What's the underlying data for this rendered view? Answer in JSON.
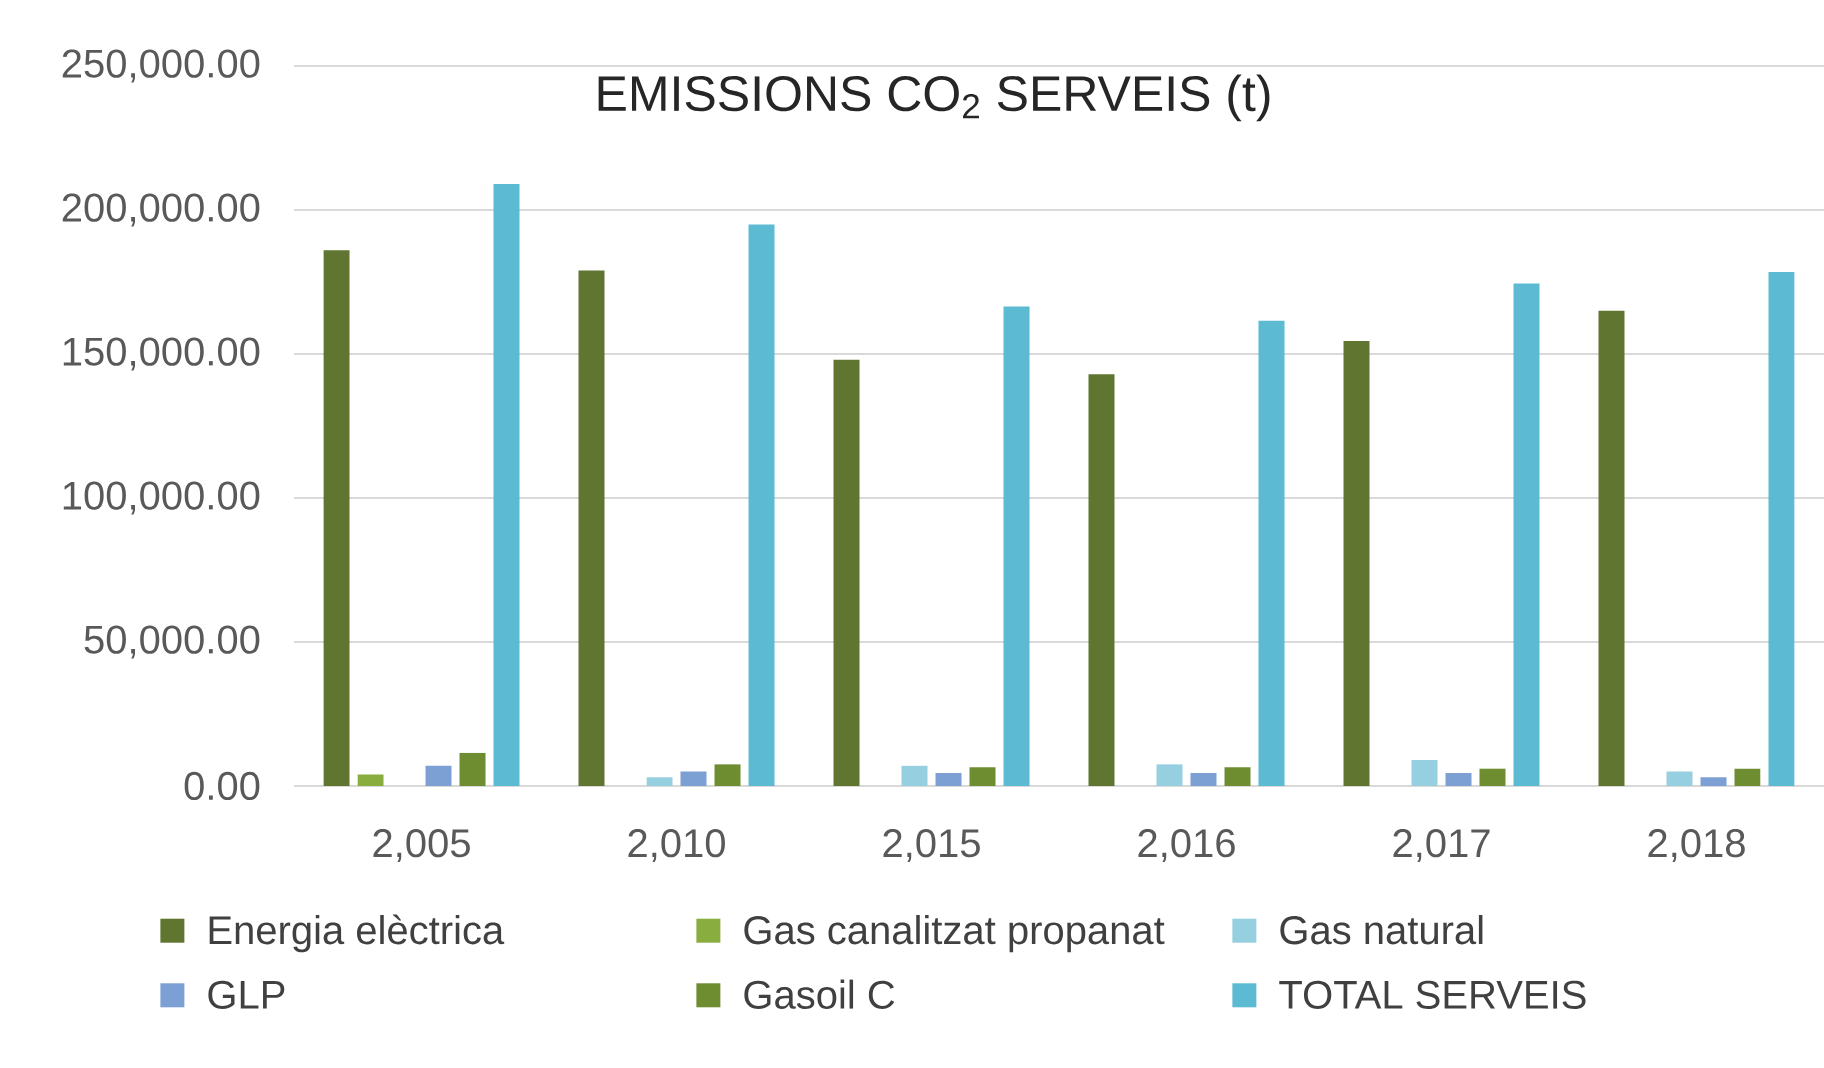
{
  "chart_data": {
    "type": "bar",
    "title": "EMISSIONS CO$_{2}$ SERVEIS (t)",
    "categories": [
      "2,005",
      "2,010",
      "2,015",
      "2,016",
      "2,017",
      "2,018"
    ],
    "series": [
      {
        "name": "Energia elèctrica",
        "color": "#5f7530",
        "values": [
          186000,
          179000,
          148000,
          143000,
          154500,
          165000
        ]
      },
      {
        "name": "Gas canalitzat propanat",
        "color": "#8aad3f",
        "values": [
          4000,
          null,
          null,
          null,
          null,
          null
        ]
      },
      {
        "name": "Gas natural",
        "color": "#95cfe0",
        "values": [
          null,
          3000,
          7000,
          7500,
          9000,
          5000
        ]
      },
      {
        "name": "GLP",
        "color": "#7c9fd4",
        "values": [
          7000,
          5000,
          4500,
          4500,
          4500,
          3000
        ]
      },
      {
        "name": "Gasoil C",
        "color": "#6e8c30",
        "values": [
          11500,
          7500,
          6500,
          6500,
          6000,
          6000
        ]
      },
      {
        "name": "TOTAL SERVEIS",
        "color": "#5cbad3",
        "values": [
          209000,
          195000,
          166500,
          161500,
          174500,
          178500
        ]
      }
    ],
    "ylim": [
      0,
      250000
    ],
    "yticks": [
      {
        "value": 0,
        "label": "0.00"
      },
      {
        "value": 50000,
        "label": "50,000.00"
      },
      {
        "value": 100000,
        "label": "100,000.00"
      },
      {
        "value": 150000,
        "label": "150,000.00"
      },
      {
        "value": 200000,
        "label": "200,000.00"
      },
      {
        "value": 250000,
        "label": "250,000.00"
      }
    ],
    "grid": "y",
    "legend": "bottom"
  }
}
